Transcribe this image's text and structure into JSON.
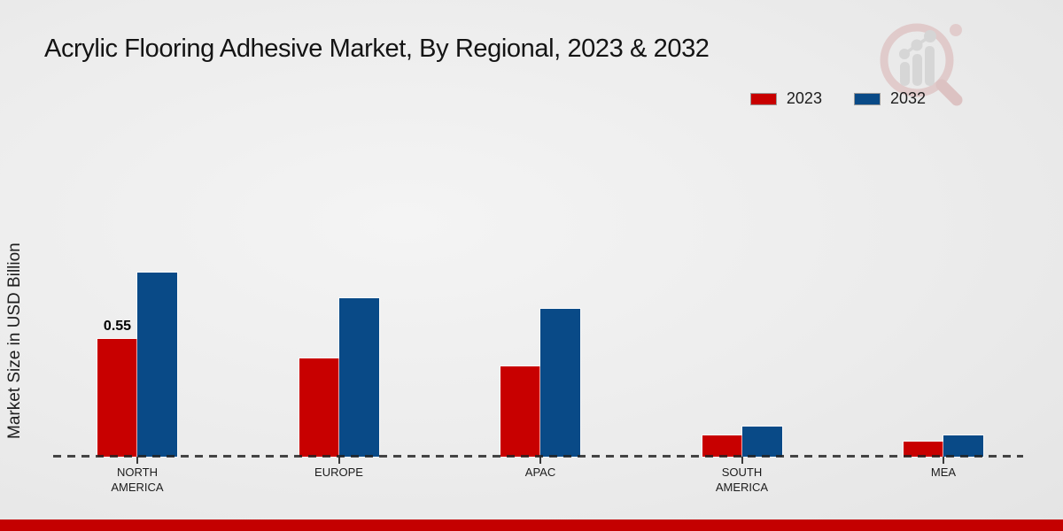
{
  "page": {
    "title": "Acrylic Flooring Adhesive Market, By Regional, 2023 & 2032"
  },
  "icons": {
    "watermark": "magnifier-bar-chart-icon"
  },
  "colors": {
    "series_2023": "#c80000",
    "series_2032": "#094a87",
    "footer_band": "#c40000",
    "baseline": "#1f1f1f",
    "background": "#ececec"
  },
  "chart_data": {
    "type": "bar",
    "grouped": true,
    "title": "Acrylic Flooring Adhesive Market, By Regional, 2023 & 2032",
    "xlabel": "",
    "ylabel": "Market Size in USD Billion",
    "categories": [
      "NORTH AMERICA",
      "EUROPE",
      "APAC",
      "SOUTH AMERICA",
      "MEA"
    ],
    "series": [
      {
        "name": "2023",
        "color": "#c80000",
        "values": [
          0.55,
          0.46,
          0.42,
          0.1,
          0.07
        ]
      },
      {
        "name": "2032",
        "color": "#094a87",
        "values": [
          0.86,
          0.74,
          0.69,
          0.14,
          0.1
        ]
      }
    ],
    "data_labels": [
      {
        "series": "2023",
        "category": "NORTH AMERICA",
        "value": "0.55"
      }
    ],
    "ylim": [
      0,
      1.0
    ],
    "grid": false,
    "axis_line_style": "dashed",
    "legend_position": "top-right"
  }
}
